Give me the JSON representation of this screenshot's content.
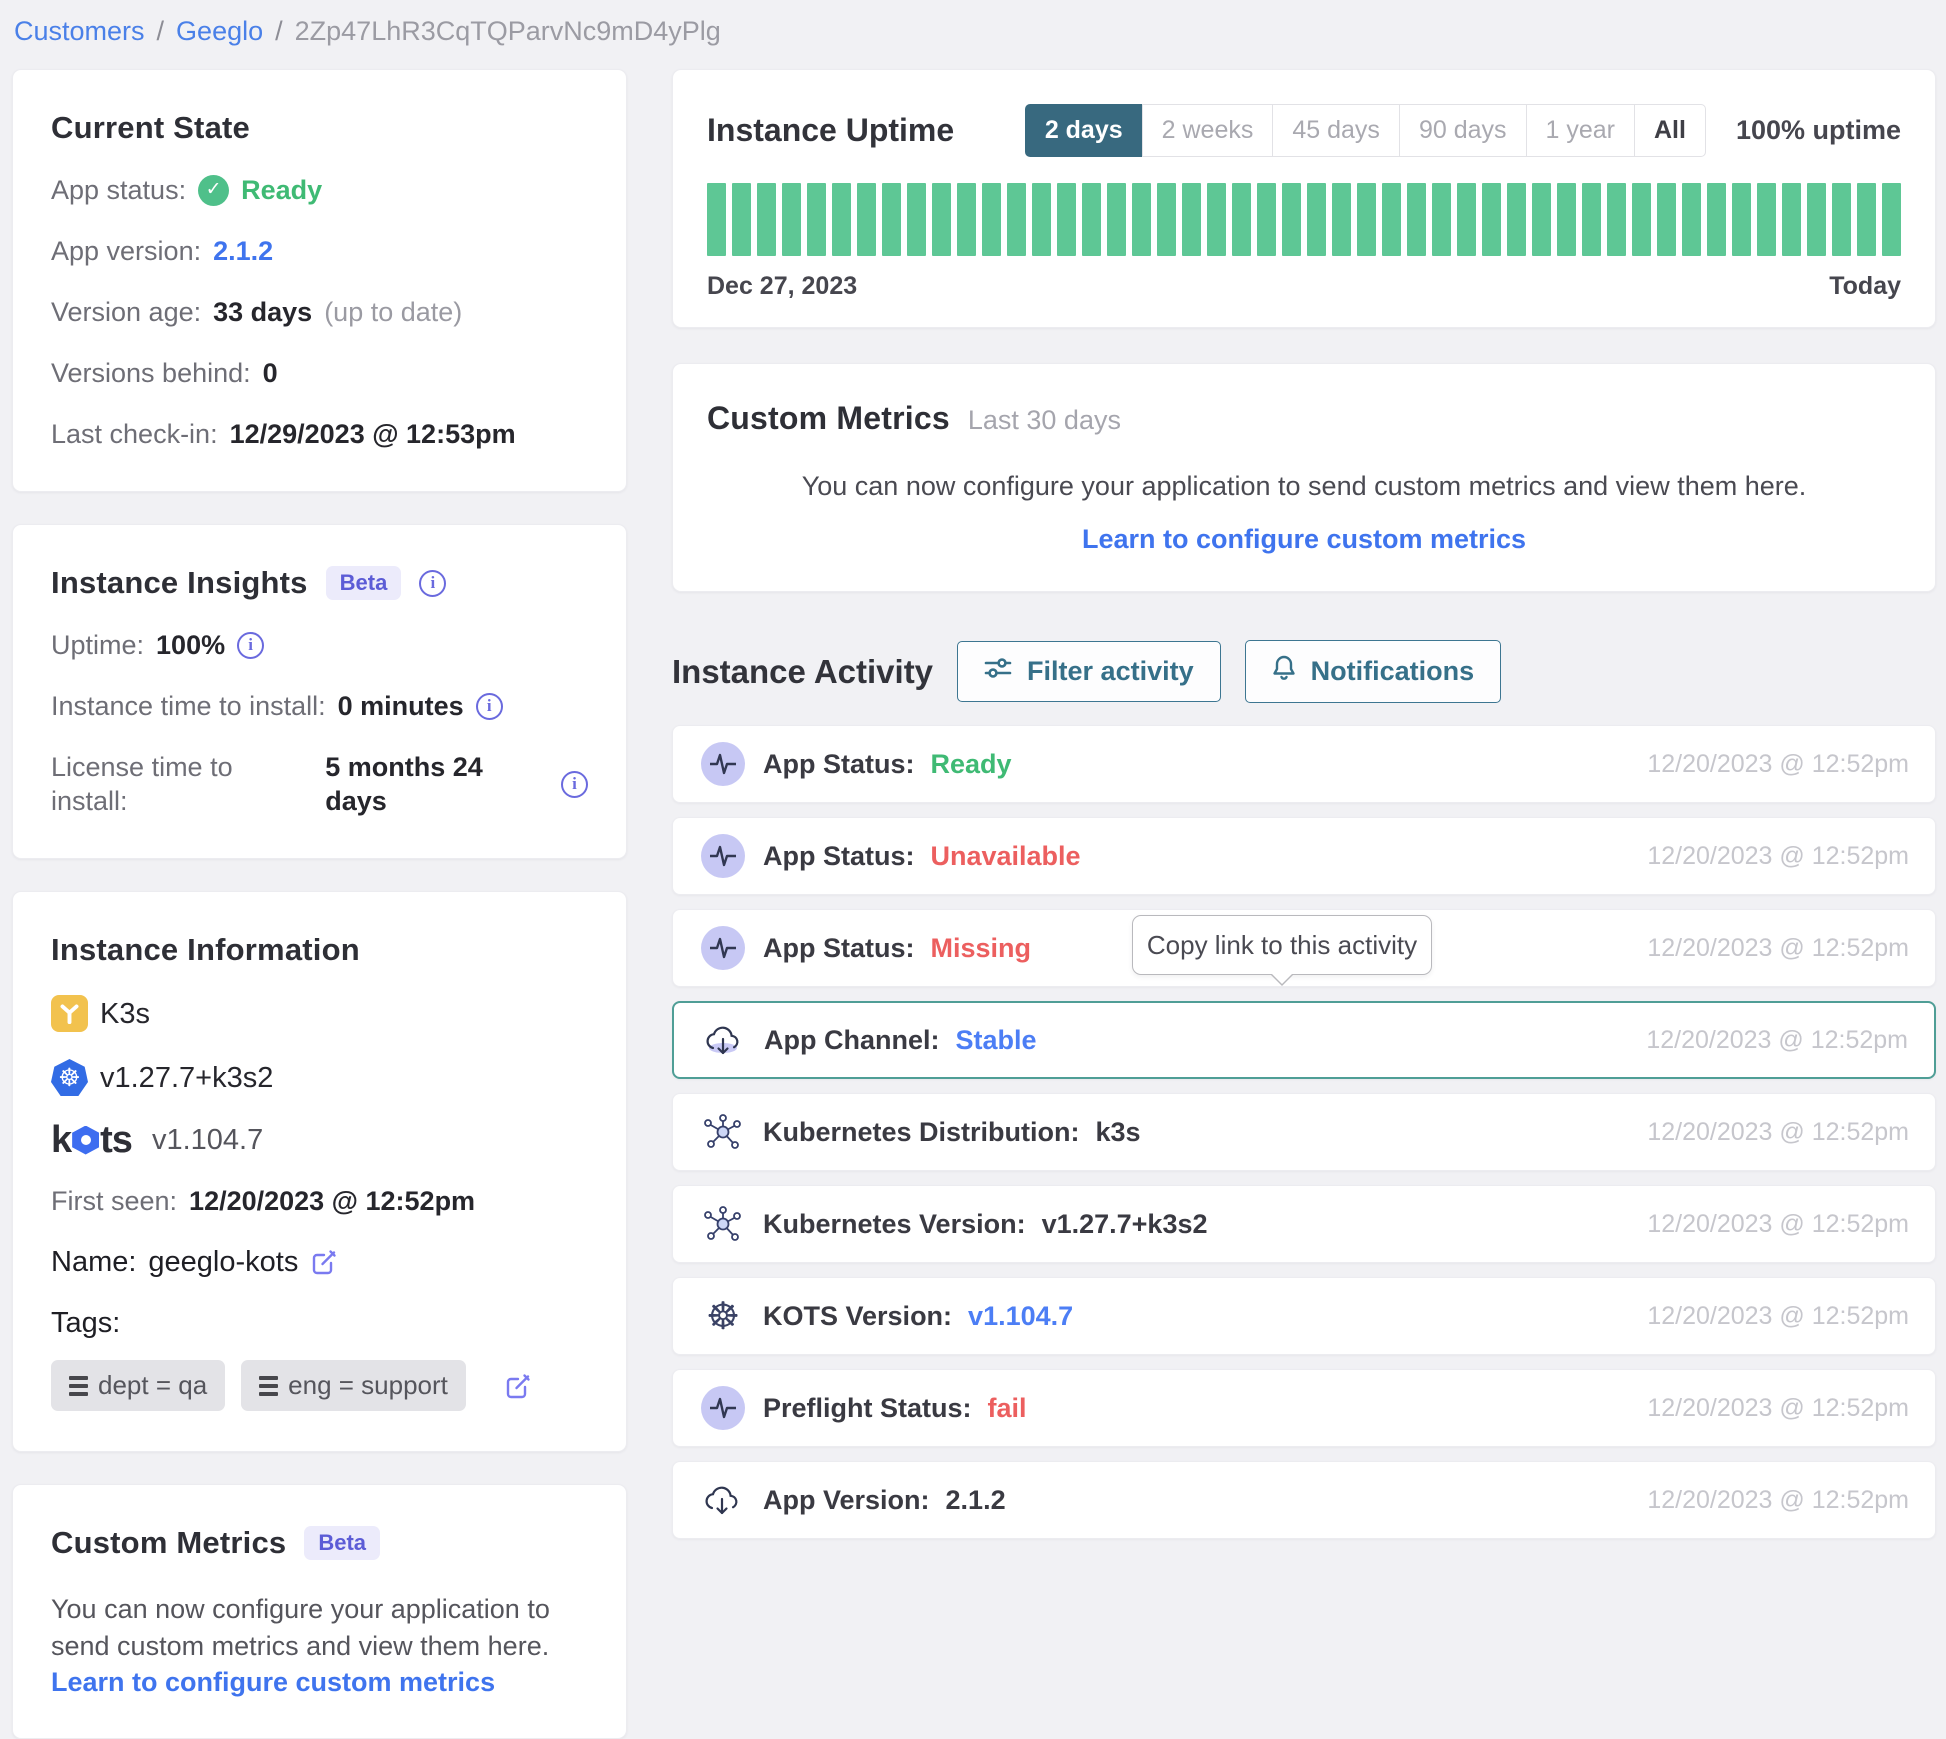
{
  "breadcrumb": {
    "links": [
      "Customers",
      "Geeglo"
    ],
    "separator": "/",
    "current": "2Zp47LhR3CqTQParvNc9mD4yPlg"
  },
  "current_state": {
    "title": "Current State",
    "app_status_label": "App status:",
    "app_status_value": "Ready",
    "app_version_label": "App version:",
    "app_version_value": "2.1.2",
    "version_age_label": "Version age:",
    "version_age_value": "33 days",
    "version_age_note": "(up to date)",
    "versions_behind_label": "Versions behind:",
    "versions_behind_value": "0",
    "last_checkin_label": "Last check-in:",
    "last_checkin_value": "12/29/2023 @ 12:53pm"
  },
  "instance_insights": {
    "title": "Instance Insights",
    "badge": "Beta",
    "uptime_label": "Uptime:",
    "uptime_value": "100%",
    "instance_tti_label": "Instance time to install:",
    "instance_tti_value": "0 minutes",
    "license_tti_label": "License time to install:",
    "license_tti_value": "5 months 24 days"
  },
  "instance_information": {
    "title": "Instance Information",
    "distribution": "K3s",
    "kubernetes_version": "v1.27.7+k3s2",
    "kots_logo_prefix": "k",
    "kots_logo_suffix": "ts",
    "kots_version": "v1.104.7",
    "first_seen_label": "First seen:",
    "first_seen_value": "12/20/2023 @ 12:52pm",
    "name_label": "Name:",
    "name_value": "geeglo-kots",
    "tags_label": "Tags:",
    "tags": [
      "dept = qa",
      "eng = support"
    ]
  },
  "custom_metrics_card": {
    "title": "Custom Metrics",
    "badge": "Beta",
    "text": "You can now configure your application to send custom metrics and view them here.",
    "link": "Learn to configure custom metrics"
  },
  "uptime": {
    "title": "Instance Uptime",
    "ranges": [
      "2 days",
      "2 weeks",
      "45 days",
      "90 days",
      "1 year",
      "All"
    ],
    "active_range": "2 days",
    "summary": "100% uptime",
    "start_label": "Dec 27, 2023",
    "end_label": "Today",
    "bar_count": 48,
    "bar_color": "#5ec795",
    "bar_value": "100%"
  },
  "custom_metrics_panel": {
    "title": "Custom Metrics",
    "period": "Last 30 days",
    "text": "You can now configure your application to send custom metrics and view them here.",
    "link": "Learn to configure custom metrics"
  },
  "activity": {
    "title": "Instance Activity",
    "filter_button": "Filter activity",
    "notifications_button": "Notifications",
    "tooltip": "Copy link to this activity",
    "rows": [
      {
        "icon": "pulse",
        "label": "App Status:",
        "value": "Ready",
        "value_color": "#3fba74",
        "timestamp": "12/20/2023 @ 12:52pm"
      },
      {
        "icon": "pulse",
        "label": "App Status:",
        "value": "Unavailable",
        "value_color": "#ec5f5f",
        "timestamp": "12/20/2023 @ 12:52pm"
      },
      {
        "icon": "pulse",
        "label": "App Status:",
        "value": "Missing",
        "value_color": "#ec5f5f",
        "timestamp": "12/20/2023 @ 12:52pm"
      },
      {
        "icon": "cloud-download",
        "label": "App Channel:",
        "value": "Stable",
        "value_color": "#4c7ef5",
        "timestamp": "12/20/2023 @ 12:52pm"
      },
      {
        "icon": "kubernetes-nodes",
        "label": "Kubernetes Distribution:",
        "value": "k3s",
        "value_color": "#3a3a42",
        "timestamp": "12/20/2023 @ 12:52pm"
      },
      {
        "icon": "kubernetes-nodes",
        "label": "Kubernetes Version:",
        "value": "v1.27.7+k3s2",
        "value_color": "#3a3a42",
        "timestamp": "12/20/2023 @ 12:52pm"
      },
      {
        "icon": "helm-wheel",
        "label": "KOTS Version:",
        "value": "v1.104.7",
        "value_color": "#4c7ef5",
        "timestamp": "12/20/2023 @ 12:52pm"
      },
      {
        "icon": "pulse",
        "label": "Preflight Status:",
        "value": "fail",
        "value_color": "#ec5f5f",
        "timestamp": "12/20/2023 @ 12:52pm"
      },
      {
        "icon": "cloud-download",
        "label": "App Version:",
        "value": "2.1.2",
        "value_color": "#3a3a42",
        "timestamp": "12/20/2023 @ 12:52pm"
      }
    ]
  }
}
